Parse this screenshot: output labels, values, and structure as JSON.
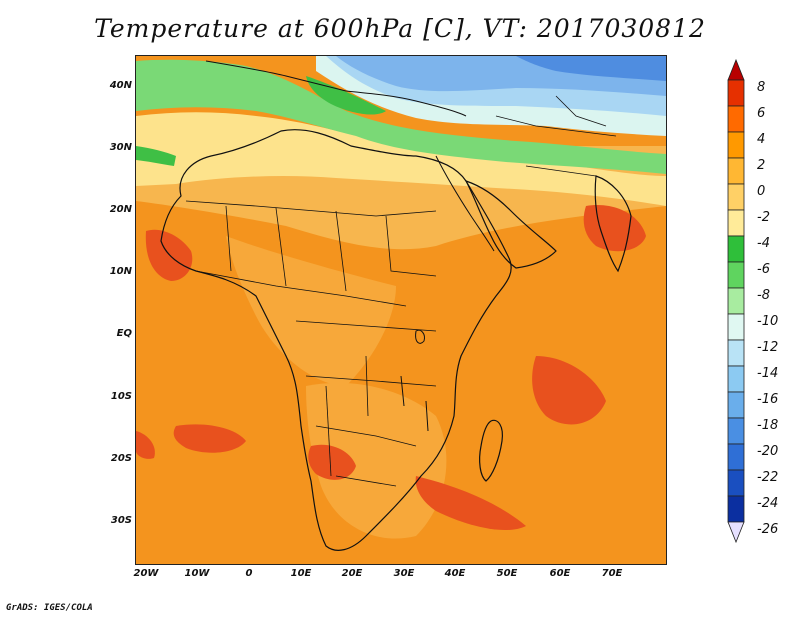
{
  "title": "Temperature at 600hPa [C], VT: 2017030812",
  "credit": "GrADS: IGES/COLA",
  "lat_labels": [
    "40N",
    "30N",
    "20N",
    "10N",
    "EQ",
    "10S",
    "20S",
    "30S"
  ],
  "lon_labels": [
    "20W",
    "10W",
    "0",
    "10E",
    "20E",
    "30E",
    "40E",
    "50E",
    "60E",
    "70E"
  ],
  "colorbar": {
    "labels": [
      "8",
      "6",
      "4",
      "2",
      "0",
      "-2",
      "-4",
      "-6",
      "-8",
      "-10",
      "-12",
      "-14",
      "-16",
      "-18",
      "-20",
      "-22",
      "-24",
      "-26"
    ],
    "colors": [
      "#b80000",
      "#e63000",
      "#ff6a00",
      "#ff9900",
      "#ffb733",
      "#ffd066",
      "#ffeb99",
      "#2fbf3a",
      "#5fd45f",
      "#a8eca0",
      "#e0f8f2",
      "#b9e3f6",
      "#8ccaf2",
      "#6aaeeb",
      "#4a8fe3",
      "#2f6fd6",
      "#1a4fc0",
      "#0b2fa0",
      "#0a1a70"
    ]
  },
  "field_colors": {
    "hot": "#e8511e",
    "warm": "#f4941e",
    "mild": "#f7b64e",
    "cool": "#fde38c",
    "green_dark": "#3fbf45",
    "green_light": "#7ad976",
    "cyan": "#dbf5f0",
    "blue_light": "#a9d6f3",
    "blue_mid": "#7db4ec",
    "blue_dark": "#4f8de0"
  }
}
